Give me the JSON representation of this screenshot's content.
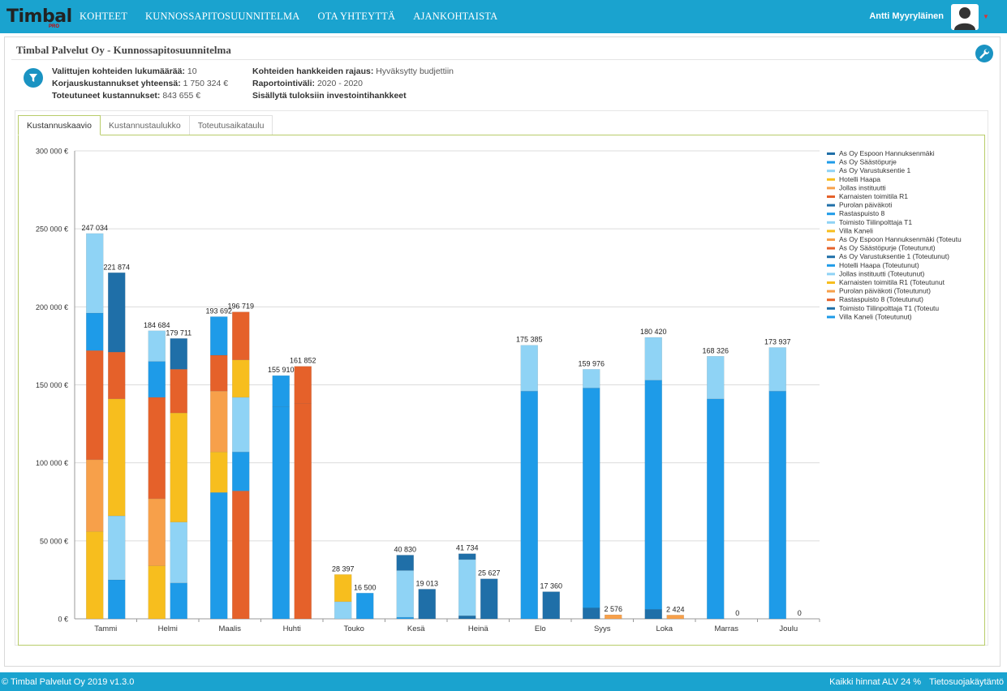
{
  "header": {
    "logo_text": "Timbal",
    "logo_sub": "PRO",
    "nav": [
      "KOHTEET",
      "KUNNOSSAPITOSUUNNITELMA",
      "OTA YHTEYTTÄ",
      "AJANKOHTAISTA"
    ],
    "user_name": "Antti Myyryläinen",
    "avatar_icon": "user-avatar-icon",
    "colors": {
      "bar": "#1aa3cf",
      "accent": "#1a93c2"
    }
  },
  "page": {
    "title": "Timbal Palvelut Oy - Kunnossapitosuunnitelma",
    "settings_icon": "wrench-icon",
    "filter_icon": "filter-icon"
  },
  "summary": {
    "count_label": "Valittujen kohteiden lukumäärää:",
    "count_value": "10",
    "repair_label": "Korjauskustannukset yhteensä:",
    "repair_value": "1 750 324 €",
    "realized_label": "Toteutuneet kustannukset:",
    "realized_value": "843 655 €",
    "limit_label": "Kohteiden hankkeiden rajaus:",
    "limit_value": "Hyväksytty budjettiin",
    "interval_label": "Raportointiväli:",
    "interval_value": "2020 - 2020",
    "include_label": "Sisällytä tuloksiin investointihankkeet"
  },
  "tabs": [
    "Kustannuskaavio",
    "Kustannustaulukko",
    "Toteutusaikataulu"
  ],
  "chart_data": {
    "type": "bar",
    "stacked": true,
    "ylim": [
      0,
      300000
    ],
    "yticks": [
      {
        "v": 0,
        "label": "0 €"
      },
      {
        "v": 50000,
        "label": "50 000 €"
      },
      {
        "v": 100000,
        "label": "100 000 €"
      },
      {
        "v": 150000,
        "label": "150 000 €"
      },
      {
        "v": 200000,
        "label": "200 000 €"
      },
      {
        "v": 250000,
        "label": "250 000 €"
      },
      {
        "v": 300000,
        "label": "300 000 €"
      }
    ],
    "categories": [
      "Tammi",
      "Helmi",
      "Maalis",
      "Huhti",
      "Touko",
      "Kesä",
      "Heinä",
      "Elo",
      "Syys",
      "Loka",
      "Marras",
      "Joulu"
    ],
    "legend_position": "right",
    "grid": true,
    "legend": [
      {
        "name": "As Oy Espoon Hannuksenmäki",
        "color": "#1f6fa8"
      },
      {
        "name": "As Oy Säästöpurje",
        "color": "#1e9be8"
      },
      {
        "name": "As Oy Varustuksentie 1",
        "color": "#8fd3f5"
      },
      {
        "name": "Hotelli Haapa",
        "color": "#f7be1e"
      },
      {
        "name": "Jollas instituutti",
        "color": "#f7a04a"
      },
      {
        "name": "Karnaisten toimitila R1",
        "color": "#e5612a"
      },
      {
        "name": "Purolan päiväkoti",
        "color": "#1f6fa8"
      },
      {
        "name": "Rastaspuisto 8",
        "color": "#1e9be8"
      },
      {
        "name": "Toimisto Tiilinpolttaja T1",
        "color": "#8fd3f5"
      },
      {
        "name": "Villa Kaneli",
        "color": "#f7be1e"
      },
      {
        "name": "As Oy Espoon Hannuksenmäki (Toteutu",
        "color": "#f7a04a"
      },
      {
        "name": "As Oy Säästöpurje (Toteutunut)",
        "color": "#e5612a"
      },
      {
        "name": "As Oy Varustuksentie 1 (Toteutunut)",
        "color": "#1f6fa8"
      },
      {
        "name": "Hotelli Haapa (Toteutunut)",
        "color": "#1e9be8"
      },
      {
        "name": "Jollas instituutti (Toteutunut)",
        "color": "#8fd3f5"
      },
      {
        "name": "Karnaisten toimitila R1 (Toteutunut",
        "color": "#f7be1e"
      },
      {
        "name": "Purolan päiväkoti (Toteutunut)",
        "color": "#f7a04a"
      },
      {
        "name": "Rastaspuisto 8 (Toteutunut)",
        "color": "#e5612a"
      },
      {
        "name": "Toimisto Tiilinpolttaja T1 (Toteutu",
        "color": "#1f6fa8"
      },
      {
        "name": "Villa Kaneli (Toteutunut)",
        "color": "#1e9be8"
      }
    ],
    "groups": [
      {
        "category": "Tammi",
        "planned": {
          "total": 247034,
          "label": "247 034",
          "segments": [
            {
              "v": 56000,
              "c": "#f7be1e"
            },
            {
              "v": 46000,
              "c": "#f7a04a"
            },
            {
              "v": 70000,
              "c": "#e5612a"
            },
            {
              "v": 24000,
              "c": "#1e9be8"
            },
            {
              "v": 51034,
              "c": "#8fd3f5"
            }
          ]
        },
        "realized": {
          "total": 221874,
          "label": "221 874",
          "segments": [
            {
              "v": 25000,
              "c": "#1e9be8"
            },
            {
              "v": 41000,
              "c": "#8fd3f5"
            },
            {
              "v": 75000,
              "c": "#f7be1e"
            },
            {
              "v": 30000,
              "c": "#e5612a"
            },
            {
              "v": 50874,
              "c": "#1f6fa8"
            }
          ]
        }
      },
      {
        "category": "Helmi",
        "planned": {
          "total": 184684,
          "label": "184 684",
          "segments": [
            {
              "v": 34000,
              "c": "#f7be1e"
            },
            {
              "v": 43000,
              "c": "#f7a04a"
            },
            {
              "v": 65000,
              "c": "#e5612a"
            },
            {
              "v": 23000,
              "c": "#1e9be8"
            },
            {
              "v": 19684,
              "c": "#8fd3f5"
            }
          ]
        },
        "realized": {
          "total": 179711,
          "label": "179 711",
          "segments": [
            {
              "v": 23000,
              "c": "#1e9be8"
            },
            {
              "v": 39000,
              "c": "#8fd3f5"
            },
            {
              "v": 70000,
              "c": "#f7be1e"
            },
            {
              "v": 28000,
              "c": "#e5612a"
            },
            {
              "v": 19711,
              "c": "#1f6fa8"
            }
          ]
        }
      },
      {
        "category": "Maalis",
        "planned": {
          "total": 193692,
          "label": "193 692",
          "segments": [
            {
              "v": 81000,
              "c": "#1e9be8"
            },
            {
              "v": 26000,
              "c": "#f7be1e"
            },
            {
              "v": 39000,
              "c": "#f7a04a"
            },
            {
              "v": 23000,
              "c": "#e5612a"
            },
            {
              "v": 24692,
              "c": "#1e9be8"
            }
          ]
        },
        "realized": {
          "total": 196719,
          "label": "196 719",
          "segments": [
            {
              "v": 82000,
              "c": "#e5612a"
            },
            {
              "v": 25000,
              "c": "#1e9be8"
            },
            {
              "v": 35000,
              "c": "#8fd3f5"
            },
            {
              "v": 24000,
              "c": "#f7be1e"
            },
            {
              "v": 30719,
              "c": "#e5612a"
            }
          ]
        }
      },
      {
        "category": "Huhti",
        "planned": {
          "total": 155910,
          "label": "155 910",
          "segments": [
            {
              "v": 136000,
              "c": "#1e9be8"
            },
            {
              "v": 19910,
              "c": "#1e9be8"
            }
          ]
        },
        "realized": {
          "total": 161852,
          "label": "161 852",
          "segments": [
            {
              "v": 138000,
              "c": "#e5612a"
            },
            {
              "v": 23852,
              "c": "#e5612a"
            }
          ]
        }
      },
      {
        "category": "Touko",
        "planned": {
          "total": 28397,
          "label": "28 397",
          "segments": [
            {
              "v": 11000,
              "c": "#8fd3f5"
            },
            {
              "v": 17397,
              "c": "#f7be1e"
            }
          ]
        },
        "realized": {
          "total": 16500,
          "label": "16 500",
          "segments": [
            {
              "v": 16500,
              "c": "#1e9be8"
            }
          ]
        }
      },
      {
        "category": "Kesä",
        "planned": {
          "total": 40830,
          "label": "40 830",
          "segments": [
            {
              "v": 1000,
              "c": "#1e9be8"
            },
            {
              "v": 30000,
              "c": "#8fd3f5"
            },
            {
              "v": 9830,
              "c": "#1f6fa8"
            }
          ]
        },
        "realized": {
          "total": 19013,
          "label": "19 013",
          "segments": [
            {
              "v": 19013,
              "c": "#1f6fa8"
            }
          ]
        }
      },
      {
        "category": "Heinä",
        "planned": {
          "total": 41734,
          "label": "41 734",
          "segments": [
            {
              "v": 2000,
              "c": "#1f6fa8"
            },
            {
              "v": 36000,
              "c": "#8fd3f5"
            },
            {
              "v": 3734,
              "c": "#1f6fa8"
            }
          ]
        },
        "realized": {
          "total": 25627,
          "label": "25 627",
          "segments": [
            {
              "v": 25627,
              "c": "#1f6fa8"
            }
          ]
        }
      },
      {
        "category": "Elo",
        "planned": {
          "total": 175385,
          "label": "175 385",
          "segments": [
            {
              "v": 146000,
              "c": "#1e9be8"
            },
            {
              "v": 29385,
              "c": "#8fd3f5"
            }
          ]
        },
        "realized": {
          "total": 17360,
          "label": "17 360",
          "segments": [
            {
              "v": 17360,
              "c": "#1f6fa8"
            }
          ]
        }
      },
      {
        "category": "Syys",
        "planned": {
          "total": 159976,
          "label": "159 976",
          "segments": [
            {
              "v": 7000,
              "c": "#1f6fa8"
            },
            {
              "v": 141000,
              "c": "#1e9be8"
            },
            {
              "v": 11976,
              "c": "#8fd3f5"
            }
          ]
        },
        "realized": {
          "total": 2576,
          "label": "2 576",
          "segments": [
            {
              "v": 2576,
              "c": "#f7a04a"
            }
          ]
        }
      },
      {
        "category": "Loka",
        "planned": {
          "total": 180420,
          "label": "180 420",
          "segments": [
            {
              "v": 6000,
              "c": "#1f6fa8"
            },
            {
              "v": 147000,
              "c": "#1e9be8"
            },
            {
              "v": 27420,
              "c": "#8fd3f5"
            }
          ]
        },
        "realized": {
          "total": 2424,
          "label": "2 424",
          "segments": [
            {
              "v": 2424,
              "c": "#f7a04a"
            }
          ]
        }
      },
      {
        "category": "Marras",
        "planned": {
          "total": 168326,
          "label": "168 326",
          "segments": [
            {
              "v": 141000,
              "c": "#1e9be8"
            },
            {
              "v": 27326,
              "c": "#8fd3f5"
            }
          ]
        },
        "realized": {
          "total": 0,
          "label": "0",
          "segments": []
        }
      },
      {
        "category": "Joulu",
        "planned": {
          "total": 173937,
          "label": "173 937",
          "segments": [
            {
              "v": 146000,
              "c": "#1e9be8"
            },
            {
              "v": 27937,
              "c": "#8fd3f5"
            }
          ]
        },
        "realized": {
          "total": 0,
          "label": "0",
          "segments": []
        }
      }
    ]
  },
  "footer": {
    "copyright": "© Timbal Palvelut Oy 2019 v1.3.0",
    "vat": "Kaikki hinnat ALV 24 %",
    "privacy": "Tietosuojakäytäntö"
  }
}
